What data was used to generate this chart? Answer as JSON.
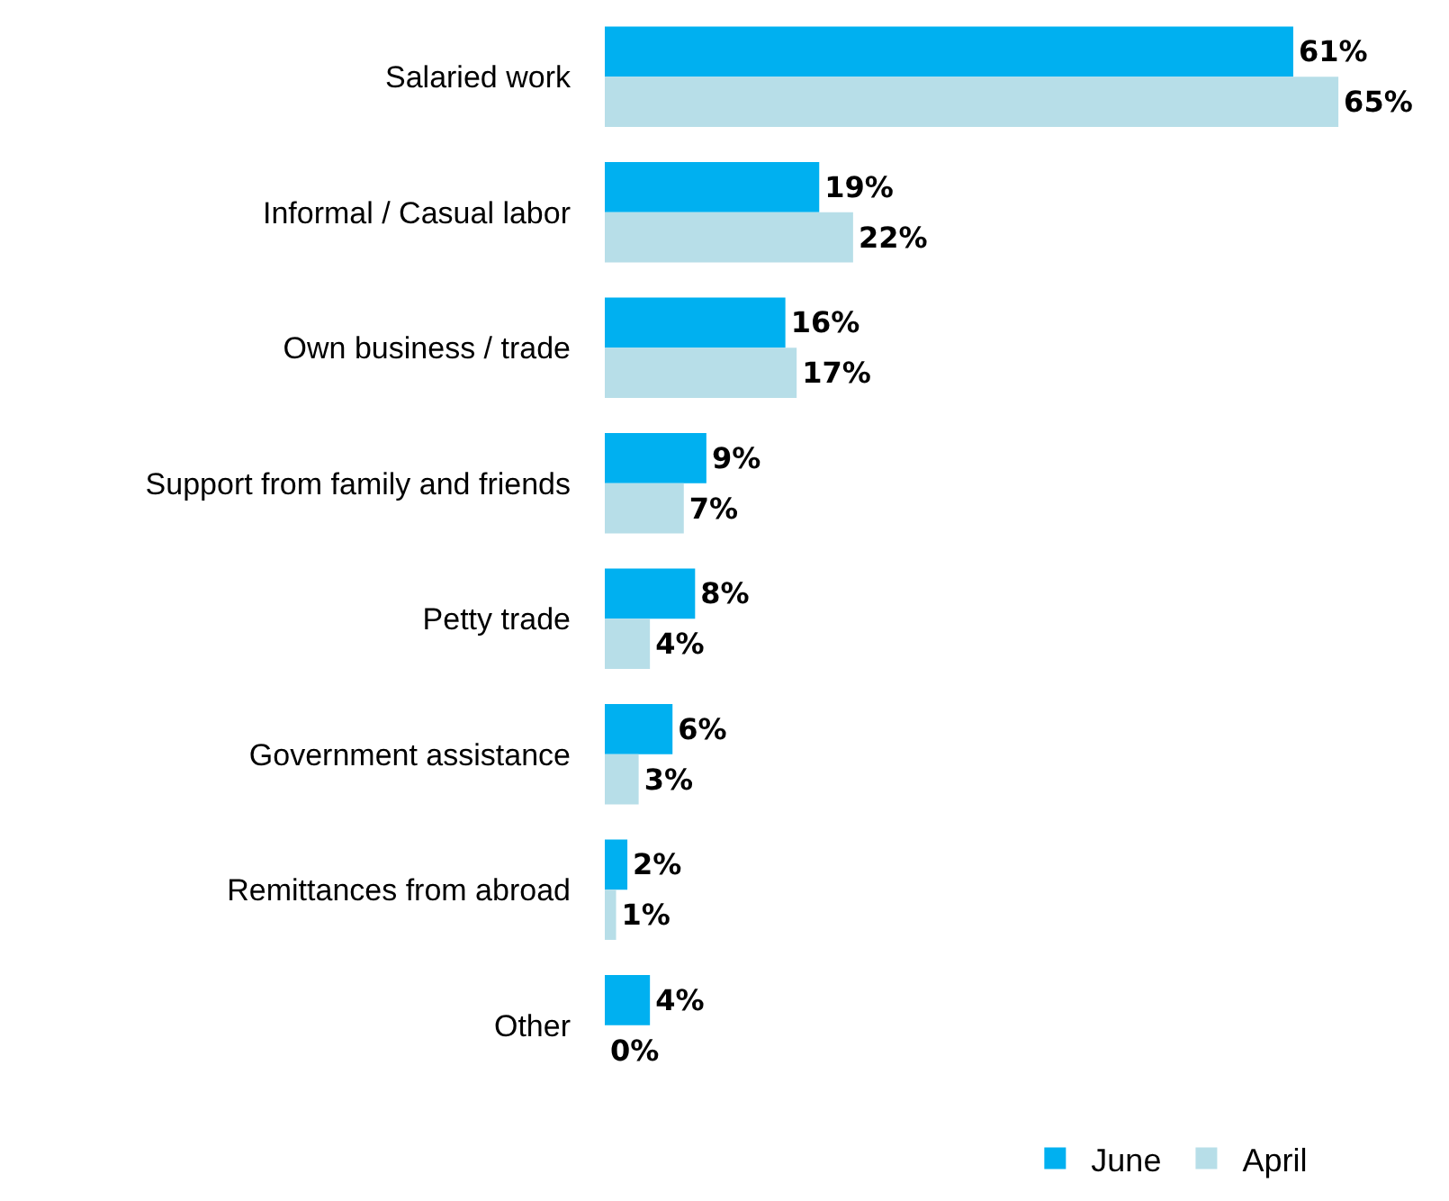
{
  "chart_data": {
    "type": "bar",
    "orientation": "horizontal",
    "categories": [
      "Salaried work",
      "Informal / Casual labor",
      "Own business / trade",
      "Support from family and friends",
      "Petty trade",
      "Government assistance",
      "Remittances from abroad",
      "Other"
    ],
    "series": [
      {
        "name": "June",
        "color": "#00b0f0",
        "values": [
          61,
          19,
          16,
          9,
          8,
          6,
          2,
          4
        ],
        "value_labels": [
          "61%",
          "19%",
          "16%",
          "9%",
          "8%",
          "6%",
          "2%",
          "4%"
        ]
      },
      {
        "name": "April",
        "color": "#b7dee8",
        "values": [
          65,
          22,
          17,
          7,
          4,
          3,
          1,
          0
        ],
        "value_labels": [
          "65%",
          "22%",
          "17%",
          "7%",
          "4%",
          "3%",
          "1%",
          "0%"
        ]
      }
    ],
    "legend": "bottom"
  }
}
